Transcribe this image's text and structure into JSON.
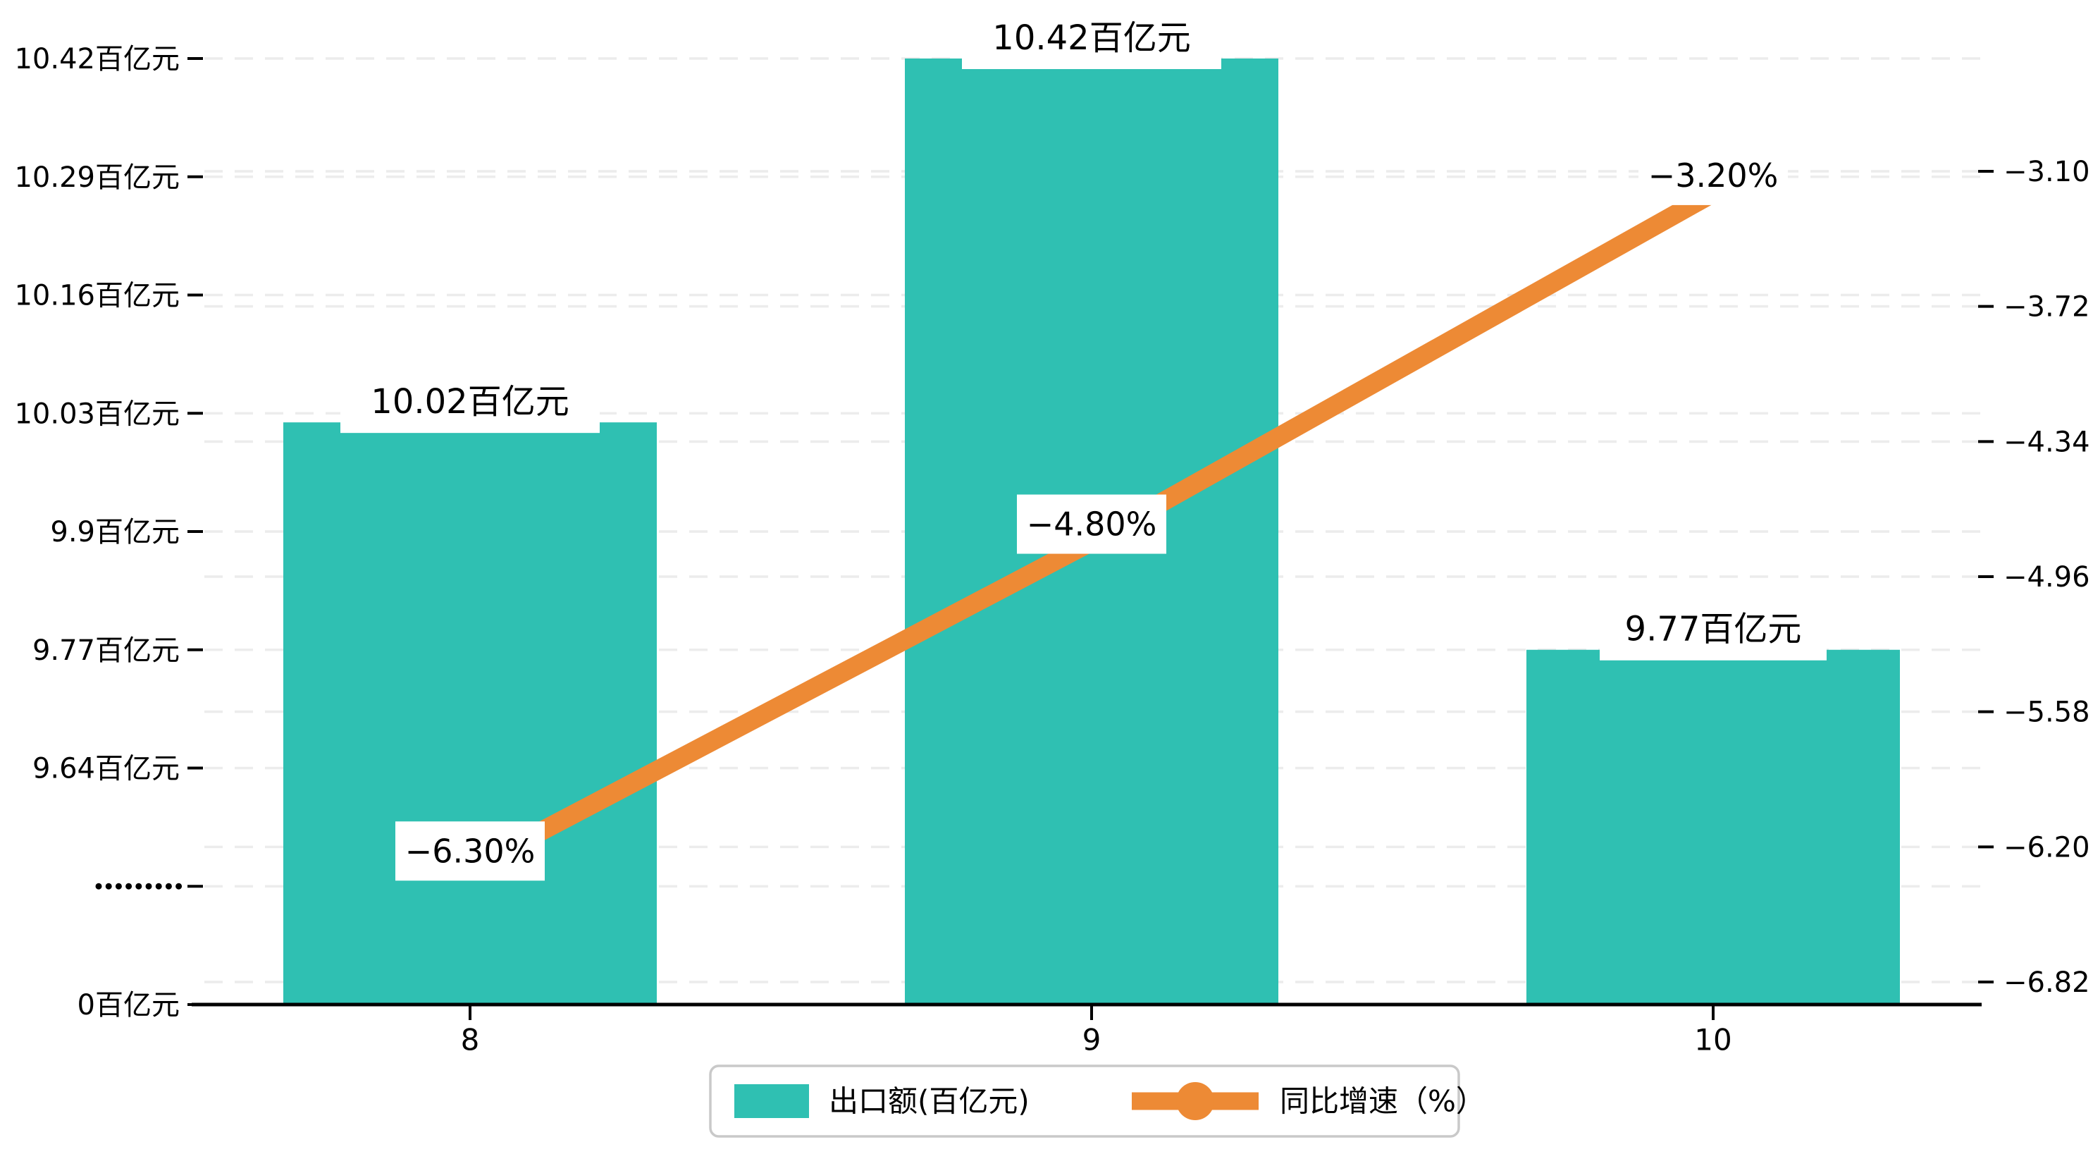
{
  "canvas": {
    "background": "#ffffff"
  },
  "colors": {
    "bar": "#2fc0b2",
    "line": "#ed8a35",
    "grid": "#ececec",
    "axis": "#000000",
    "text": "#000000",
    "label_box": "#ffffff",
    "legend_border": "#c9c9c9",
    "legend_background": "#ffffff"
  },
  "chart_data": {
    "type": "bar+line",
    "categories": [
      "8",
      "9",
      "10"
    ],
    "series": [
      {
        "name": "出口额(百亿元)",
        "kind": "bar",
        "axis": "left",
        "color": "#2fc0b2",
        "values": [
          10.02,
          10.42,
          9.77
        ],
        "point_labels": [
          "10.02百亿元",
          "10.42百亿元",
          "9.77百亿元"
        ]
      },
      {
        "name": "同比增速（%）",
        "kind": "line",
        "axis": "right",
        "color": "#ed8a35",
        "values": [
          -6.3,
          -4.8,
          -3.2
        ],
        "point_labels": [
          "−6.30%",
          "−4.80%",
          "−3.20%"
        ]
      }
    ],
    "left_axis": {
      "unit": "百亿元",
      "broken": true,
      "tick_labels": [
        "10.42百亿元",
        "10.29百亿元",
        "10.16百亿元",
        "10.03百亿元",
        "9.9百亿元",
        "9.77百亿元",
        "9.64百亿元",
        "·········",
        "0百亿元"
      ],
      "tick_values": [
        10.42,
        10.29,
        10.16,
        10.03,
        9.9,
        9.77,
        9.64,
        null,
        0
      ],
      "value_step": 0.13
    },
    "right_axis": {
      "tick_labels": [
        "−3.10",
        "−3.72",
        "−4.34",
        "−4.96",
        "−5.58",
        "−6.20",
        "−6.82"
      ],
      "tick_values": [
        -3.1,
        -3.72,
        -4.34,
        -4.96,
        -5.58,
        -6.2,
        -6.82
      ],
      "value_step": 0.62
    },
    "x_axis": {
      "tick_labels": [
        "8",
        "9",
        "10"
      ]
    },
    "grid": "dashed horizontal, both axes",
    "legend_position": "bottom-center",
    "legend": [
      {
        "label": "出口额(百亿元)",
        "marker": "square",
        "color": "#2fc0b2"
      },
      {
        "label": "同比增速（%）",
        "marker": "line-dot",
        "color": "#ed8a35"
      }
    ]
  }
}
